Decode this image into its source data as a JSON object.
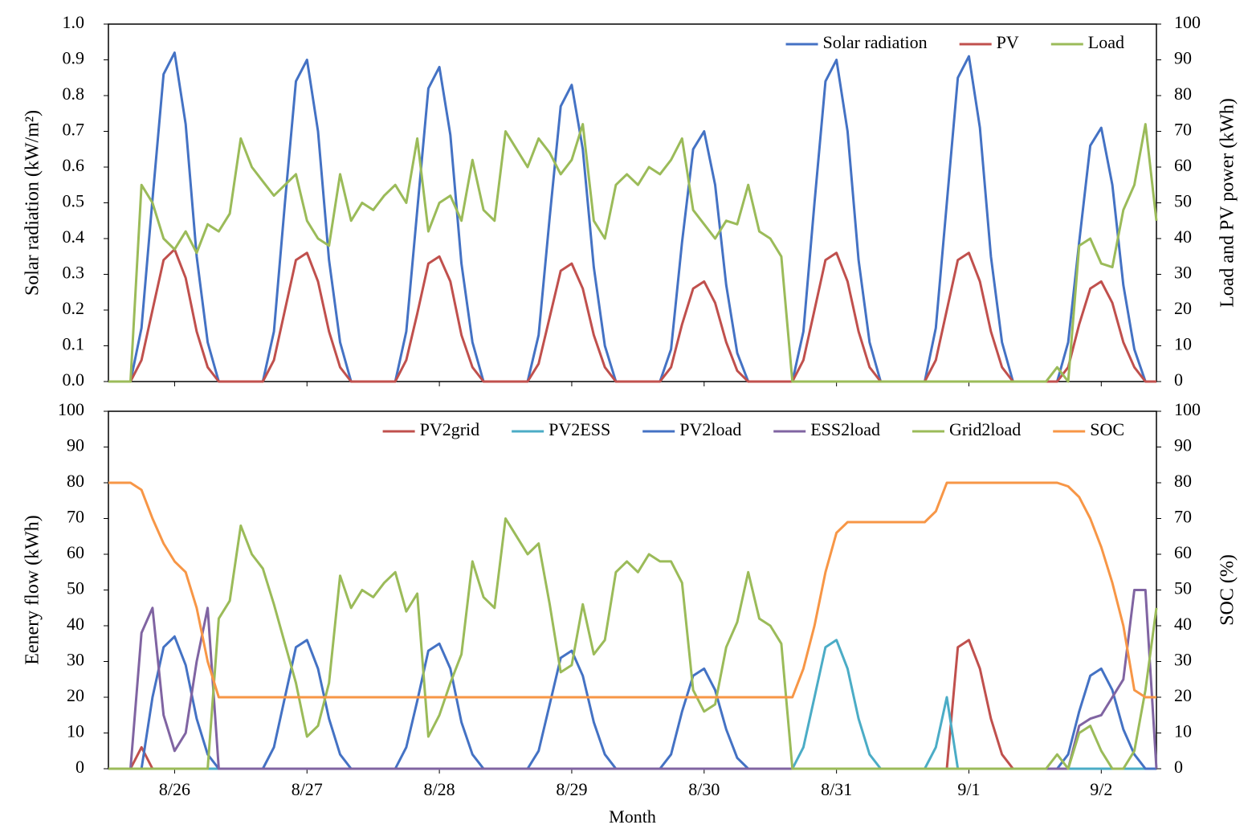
{
  "chart_data": [
    {
      "type": "line",
      "ylabel": "Solar radiation (kW/m²)",
      "y2label": "Load and PV power (kWh)",
      "legend": "top-right",
      "x": [
        0,
        2,
        4,
        6,
        8,
        10,
        12,
        14,
        16,
        18,
        20,
        22,
        24,
        26,
        28,
        30,
        32,
        34,
        36,
        38,
        40,
        42,
        44,
        46,
        48,
        50,
        52,
        54,
        56,
        58,
        60,
        62,
        64,
        66,
        68,
        70,
        72,
        74,
        76,
        78,
        80,
        82,
        84,
        86,
        88,
        90,
        92,
        94,
        96,
        98,
        100,
        102,
        104,
        106,
        108,
        110,
        112,
        114,
        116,
        118,
        120,
        122,
        124,
        126,
        128,
        130,
        132,
        134,
        136,
        138,
        140,
        142,
        144,
        146,
        148,
        150,
        152,
        154,
        156,
        158,
        160,
        162,
        164,
        166,
        168,
        170,
        172,
        174,
        176,
        178,
        180,
        182,
        184,
        186,
        188,
        190
      ],
      "xlim": [
        0,
        190
      ],
      "xticks": [
        12,
        36,
        60,
        84,
        108,
        132,
        156,
        180
      ],
      "ylim": [
        0,
        1
      ],
      "yticks": [
        {
          "value": 0,
          "label": "0.0"
        },
        0.1,
        0.2,
        0.3,
        0.4,
        0.5,
        0.6,
        0.7,
        0.8,
        0.9,
        {
          "value": 1,
          "label": "1.0"
        }
      ],
      "y2lim": [
        0,
        100
      ],
      "y2ticks": [
        0,
        10,
        20,
        30,
        40,
        50,
        60,
        70,
        80,
        90,
        100
      ],
      "series": [
        {
          "name": "Solar radiation",
          "color": "#4472c4",
          "values": [
            0,
            0,
            0,
            0.15,
            0.51,
            0.86,
            0.92,
            0.72,
            0.35,
            0.11,
            0,
            0,
            0,
            0,
            0,
            0.14,
            0.5,
            0.84,
            0.9,
            0.7,
            0.34,
            0.11,
            0,
            0,
            0,
            0,
            0,
            0.14,
            0.48,
            0.82,
            0.88,
            0.69,
            0.33,
            0.11,
            0,
            0,
            0,
            0,
            0,
            0.13,
            0.46,
            0.77,
            0.83,
            0.65,
            0.32,
            0.1,
            0,
            0,
            0,
            0,
            0,
            0.09,
            0.39,
            0.65,
            0.7,
            0.55,
            0.27,
            0.08,
            0,
            0,
            0,
            0,
            0,
            0.14,
            0.5,
            0.84,
            0.9,
            0.7,
            0.34,
            0.11,
            0,
            0,
            0,
            0,
            0,
            0.15,
            0.5,
            0.85,
            0.91,
            0.71,
            0.35,
            0.11,
            0,
            0,
            0,
            0,
            0,
            0.11,
            0.39,
            0.66,
            0.71,
            0.55,
            0.27,
            0.09,
            0,
            0
          ]
        },
        {
          "name": "PV",
          "color": "#c0504d",
          "axis": "y2",
          "values": [
            0,
            0,
            0,
            6,
            20,
            34,
            37,
            29,
            14,
            4,
            0,
            0,
            0,
            0,
            0,
            6,
            20,
            34,
            36,
            28,
            14,
            4,
            0,
            0,
            0,
            0,
            0,
            6,
            19,
            33,
            35,
            28,
            13,
            4,
            0,
            0,
            0,
            0,
            0,
            5,
            18,
            31,
            33,
            26,
            13,
            4,
            0,
            0,
            0,
            0,
            0,
            4,
            16,
            26,
            28,
            22,
            11,
            3,
            0,
            0,
            0,
            0,
            0,
            6,
            20,
            34,
            36,
            28,
            14,
            4,
            0,
            0,
            0,
            0,
            0,
            6,
            20,
            34,
            36,
            28,
            14,
            4,
            0,
            0,
            0,
            0,
            0,
            4,
            16,
            26,
            28,
            22,
            11,
            4,
            0,
            0
          ]
        },
        {
          "name": "Load",
          "color": "#9bbb59",
          "axis": "y2",
          "values": [
            0,
            0,
            0,
            55,
            50,
            40,
            37,
            42,
            36,
            44,
            42,
            47,
            68,
            60,
            56,
            52,
            55,
            58,
            45,
            40,
            38,
            58,
            45,
            50,
            48,
            52,
            55,
            50,
            68,
            42,
            50,
            52,
            45,
            62,
            48,
            45,
            70,
            65,
            60,
            68,
            64,
            58,
            62,
            72,
            45,
            40,
            55,
            58,
            55,
            60,
            58,
            62,
            68,
            48,
            44,
            40,
            45,
            44,
            55,
            42,
            40,
            35,
            0,
            0,
            0,
            0,
            0,
            0,
            0,
            0,
            0,
            0,
            0,
            0,
            0,
            0,
            0,
            0,
            0,
            0,
            0,
            0,
            0,
            0,
            0,
            0,
            4,
            0,
            38,
            40,
            33,
            32,
            48,
            55,
            72,
            45
          ]
        }
      ]
    },
    {
      "type": "line",
      "xlabel": "Month",
      "ylabel": "Eenery flow (kWh)",
      "y2label": "SOC (%)",
      "legend": "top-right",
      "x": [
        0,
        2,
        4,
        6,
        8,
        10,
        12,
        14,
        16,
        18,
        20,
        22,
        24,
        26,
        28,
        30,
        32,
        34,
        36,
        38,
        40,
        42,
        44,
        46,
        48,
        50,
        52,
        54,
        56,
        58,
        60,
        62,
        64,
        66,
        68,
        70,
        72,
        74,
        76,
        78,
        80,
        82,
        84,
        86,
        88,
        90,
        92,
        94,
        96,
        98,
        100,
        102,
        104,
        106,
        108,
        110,
        112,
        114,
        116,
        118,
        120,
        122,
        124,
        126,
        128,
        130,
        132,
        134,
        136,
        138,
        140,
        142,
        144,
        146,
        148,
        150,
        152,
        154,
        156,
        158,
        160,
        162,
        164,
        166,
        168,
        170,
        172,
        174,
        176,
        178,
        180,
        182,
        184,
        186,
        188,
        190
      ],
      "xlim": [
        0,
        190
      ],
      "xticks": [
        {
          "value": 12,
          "label": "8/26"
        },
        {
          "value": 36,
          "label": "8/27"
        },
        {
          "value": 60,
          "label": "8/28"
        },
        {
          "value": 84,
          "label": "8/29"
        },
        {
          "value": 108,
          "label": "8/30"
        },
        {
          "value": 132,
          "label": "8/31"
        },
        {
          "value": 156,
          "label": "9/1"
        },
        {
          "value": 180,
          "label": "9/2"
        }
      ],
      "ylim": [
        0,
        100
      ],
      "yticks": [
        0,
        10,
        20,
        30,
        40,
        50,
        60,
        70,
        80,
        90,
        100
      ],
      "y2lim": [
        0,
        100
      ],
      "y2ticks": [
        0,
        10,
        20,
        30,
        40,
        50,
        60,
        70,
        80,
        90,
        100
      ],
      "series": [
        {
          "name": "PV2grid",
          "color": "#c0504d",
          "values": [
            0,
            0,
            0,
            6,
            0,
            0,
            0,
            0,
            0,
            0,
            0,
            0,
            0,
            0,
            0,
            0,
            0,
            0,
            0,
            0,
            0,
            0,
            0,
            0,
            0,
            0,
            0,
            0,
            0,
            0,
            0,
            0,
            0,
            0,
            0,
            0,
            0,
            0,
            0,
            0,
            0,
            0,
            0,
            0,
            0,
            0,
            0,
            0,
            0,
            0,
            0,
            0,
            0,
            0,
            0,
            0,
            0,
            0,
            0,
            0,
            0,
            0,
            0,
            0,
            0,
            0,
            0,
            0,
            0,
            0,
            0,
            0,
            0,
            0,
            0,
            0,
            0,
            34,
            36,
            28,
            14,
            4,
            0,
            0,
            0,
            0,
            0,
            0,
            0,
            0,
            0,
            0,
            0,
            0,
            0,
            0
          ]
        },
        {
          "name": "PV2ESS",
          "color": "#4bacc6",
          "values": [
            0,
            0,
            0,
            0,
            0,
            0,
            0,
            0,
            0,
            0,
            0,
            0,
            0,
            0,
            0,
            0,
            0,
            0,
            0,
            0,
            0,
            0,
            0,
            0,
            0,
            0,
            0,
            0,
            0,
            0,
            0,
            0,
            0,
            0,
            0,
            0,
            0,
            0,
            0,
            0,
            0,
            0,
            0,
            0,
            0,
            0,
            0,
            0,
            0,
            0,
            0,
            0,
            0,
            0,
            0,
            0,
            0,
            0,
            0,
            0,
            0,
            0,
            0,
            6,
            20,
            34,
            36,
            28,
            14,
            4,
            0,
            0,
            0,
            0,
            0,
            6,
            20,
            0,
            0,
            0,
            0,
            0,
            0,
            0,
            0,
            0,
            0,
            0,
            0,
            0,
            0,
            0,
            0,
            0,
            0,
            0
          ]
        },
        {
          "name": "PV2load",
          "color": "#4472c4",
          "values": [
            0,
            0,
            0,
            0,
            20,
            34,
            37,
            29,
            14,
            4,
            0,
            0,
            0,
            0,
            0,
            6,
            20,
            34,
            36,
            28,
            14,
            4,
            0,
            0,
            0,
            0,
            0,
            6,
            19,
            33,
            35,
            28,
            13,
            4,
            0,
            0,
            0,
            0,
            0,
            5,
            18,
            31,
            33,
            26,
            13,
            4,
            0,
            0,
            0,
            0,
            0,
            4,
            16,
            26,
            28,
            22,
            11,
            3,
            0,
            0,
            0,
            0,
            0,
            0,
            0,
            0,
            0,
            0,
            0,
            0,
            0,
            0,
            0,
            0,
            0,
            0,
            0,
            0,
            0,
            0,
            0,
            0,
            0,
            0,
            0,
            0,
            0,
            4,
            16,
            26,
            28,
            22,
            11,
            4,
            0,
            0
          ]
        },
        {
          "name": "ESS2load",
          "color": "#8064a2",
          "values": [
            0,
            0,
            0,
            38,
            45,
            15,
            5,
            10,
            30,
            45,
            0,
            0,
            0,
            0,
            0,
            0,
            0,
            0,
            0,
            0,
            0,
            0,
            0,
            0,
            0,
            0,
            0,
            0,
            0,
            0,
            0,
            0,
            0,
            0,
            0,
            0,
            0,
            0,
            0,
            0,
            0,
            0,
            0,
            0,
            0,
            0,
            0,
            0,
            0,
            0,
            0,
            0,
            0,
            0,
            0,
            0,
            0,
            0,
            0,
            0,
            0,
            0,
            0,
            0,
            0,
            0,
            0,
            0,
            0,
            0,
            0,
            0,
            0,
            0,
            0,
            0,
            0,
            0,
            0,
            0,
            0,
            0,
            0,
            0,
            0,
            0,
            0,
            0,
            12,
            14,
            15,
            20,
            25,
            50,
            50,
            0
          ]
        },
        {
          "name": "Grid2load",
          "color": "#9bbb59",
          "values": [
            0,
            0,
            0,
            0,
            0,
            0,
            0,
            0,
            0,
            0,
            42,
            47,
            68,
            60,
            56,
            46,
            35,
            24,
            9,
            12,
            24,
            54,
            45,
            50,
            48,
            52,
            55,
            44,
            49,
            9,
            15,
            24,
            32,
            58,
            48,
            45,
            70,
            65,
            60,
            63,
            46,
            27,
            29,
            46,
            32,
            36,
            55,
            58,
            55,
            60,
            58,
            58,
            52,
            22,
            16,
            18,
            34,
            41,
            55,
            42,
            40,
            35,
            0,
            0,
            0,
            0,
            0,
            0,
            0,
            0,
            0,
            0,
            0,
            0,
            0,
            0,
            0,
            0,
            0,
            0,
            0,
            0,
            0,
            0,
            0,
            0,
            4,
            0,
            10,
            12,
            5,
            0,
            0,
            5,
            22,
            45
          ]
        },
        {
          "name": "SOC",
          "color": "#f79646",
          "axis": "y2",
          "values": [
            80,
            80,
            80,
            78,
            70,
            63,
            58,
            55,
            45,
            30,
            20,
            20,
            20,
            20,
            20,
            20,
            20,
            20,
            20,
            20,
            20,
            20,
            20,
            20,
            20,
            20,
            20,
            20,
            20,
            20,
            20,
            20,
            20,
            20,
            20,
            20,
            20,
            20,
            20,
            20,
            20,
            20,
            20,
            20,
            20,
            20,
            20,
            20,
            20,
            20,
            20,
            20,
            20,
            20,
            20,
            20,
            20,
            20,
            20,
            20,
            20,
            20,
            20,
            28,
            40,
            55,
            66,
            69,
            69,
            69,
            69,
            69,
            69,
            69,
            69,
            72,
            80,
            80,
            80,
            80,
            80,
            80,
            80,
            80,
            80,
            80,
            80,
            79,
            76,
            70,
            62,
            52,
            40,
            22,
            20,
            20
          ]
        }
      ]
    }
  ]
}
